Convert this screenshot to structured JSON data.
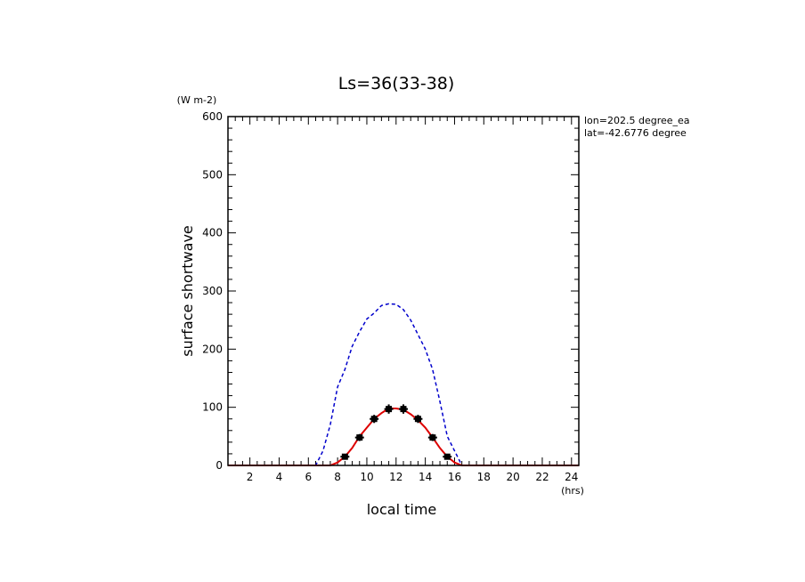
{
  "chart_data": {
    "type": "line",
    "title": "Ls=36(33-38)",
    "xlabel": "local time",
    "ylabel": "surface shortwave",
    "x_unit": "(hrs)",
    "y_unit": "(W m-2)",
    "xlim": [
      0.5,
      24.5
    ],
    "ylim": [
      0,
      600
    ],
    "x_ticks": [
      2,
      4,
      6,
      8,
      10,
      12,
      14,
      16,
      18,
      20,
      22,
      24
    ],
    "y_ticks": [
      0,
      100,
      200,
      300,
      400,
      500,
      600
    ],
    "info_lines": [
      "lon=202.5 degree_ea",
      "lat=-42.6776 degree"
    ],
    "series": [
      {
        "style": "dashed",
        "color": "#0000cc",
        "x": [
          0.5,
          1,
          2,
          3,
          4,
          5,
          6,
          6.5,
          7,
          7.5,
          8,
          8.5,
          9,
          9.5,
          10,
          10.5,
          11,
          11.5,
          12,
          12.5,
          13,
          13.5,
          14,
          14.5,
          15,
          15.5,
          16,
          16.5,
          17,
          17.5,
          18,
          19,
          20,
          21,
          22,
          23,
          24,
          24.5
        ],
        "y": [
          0,
          0,
          0,
          0,
          0,
          0,
          0,
          0,
          25,
          70,
          135,
          165,
          205,
          230,
          252,
          262,
          275,
          278,
          277,
          268,
          250,
          225,
          200,
          165,
          110,
          50,
          25,
          0,
          0,
          0,
          0,
          0,
          0,
          0,
          0,
          0,
          0,
          0
        ]
      },
      {
        "style": "solid",
        "color": "#dd0000",
        "x": [
          0.5,
          1,
          2,
          3,
          4,
          5,
          6,
          7,
          7.5,
          8,
          8.5,
          9,
          9.5,
          10,
          10.5,
          11,
          11.5,
          12,
          12.5,
          13,
          13.5,
          14,
          14.5,
          15,
          15.5,
          16,
          16.5,
          17,
          18,
          19,
          20,
          21,
          22,
          23,
          24,
          24.5
        ],
        "y": [
          0,
          0,
          0,
          0,
          0,
          0,
          0,
          0,
          0,
          5,
          15,
          30,
          50,
          65,
          80,
          90,
          98,
          98,
          96,
          88,
          78,
          65,
          48,
          30,
          15,
          5,
          0,
          0,
          0,
          0,
          0,
          0,
          0,
          0,
          0,
          0
        ]
      },
      {
        "style": "markers",
        "color": "#000000",
        "x": [
          8.5,
          9.5,
          10.5,
          11.5,
          12.5,
          13.5,
          14.5,
          15.5
        ],
        "y": [
          15,
          48,
          80,
          97,
          97,
          80,
          48,
          15
        ],
        "err": [
          4,
          6,
          7,
          8,
          8,
          7,
          6,
          4
        ]
      }
    ]
  }
}
